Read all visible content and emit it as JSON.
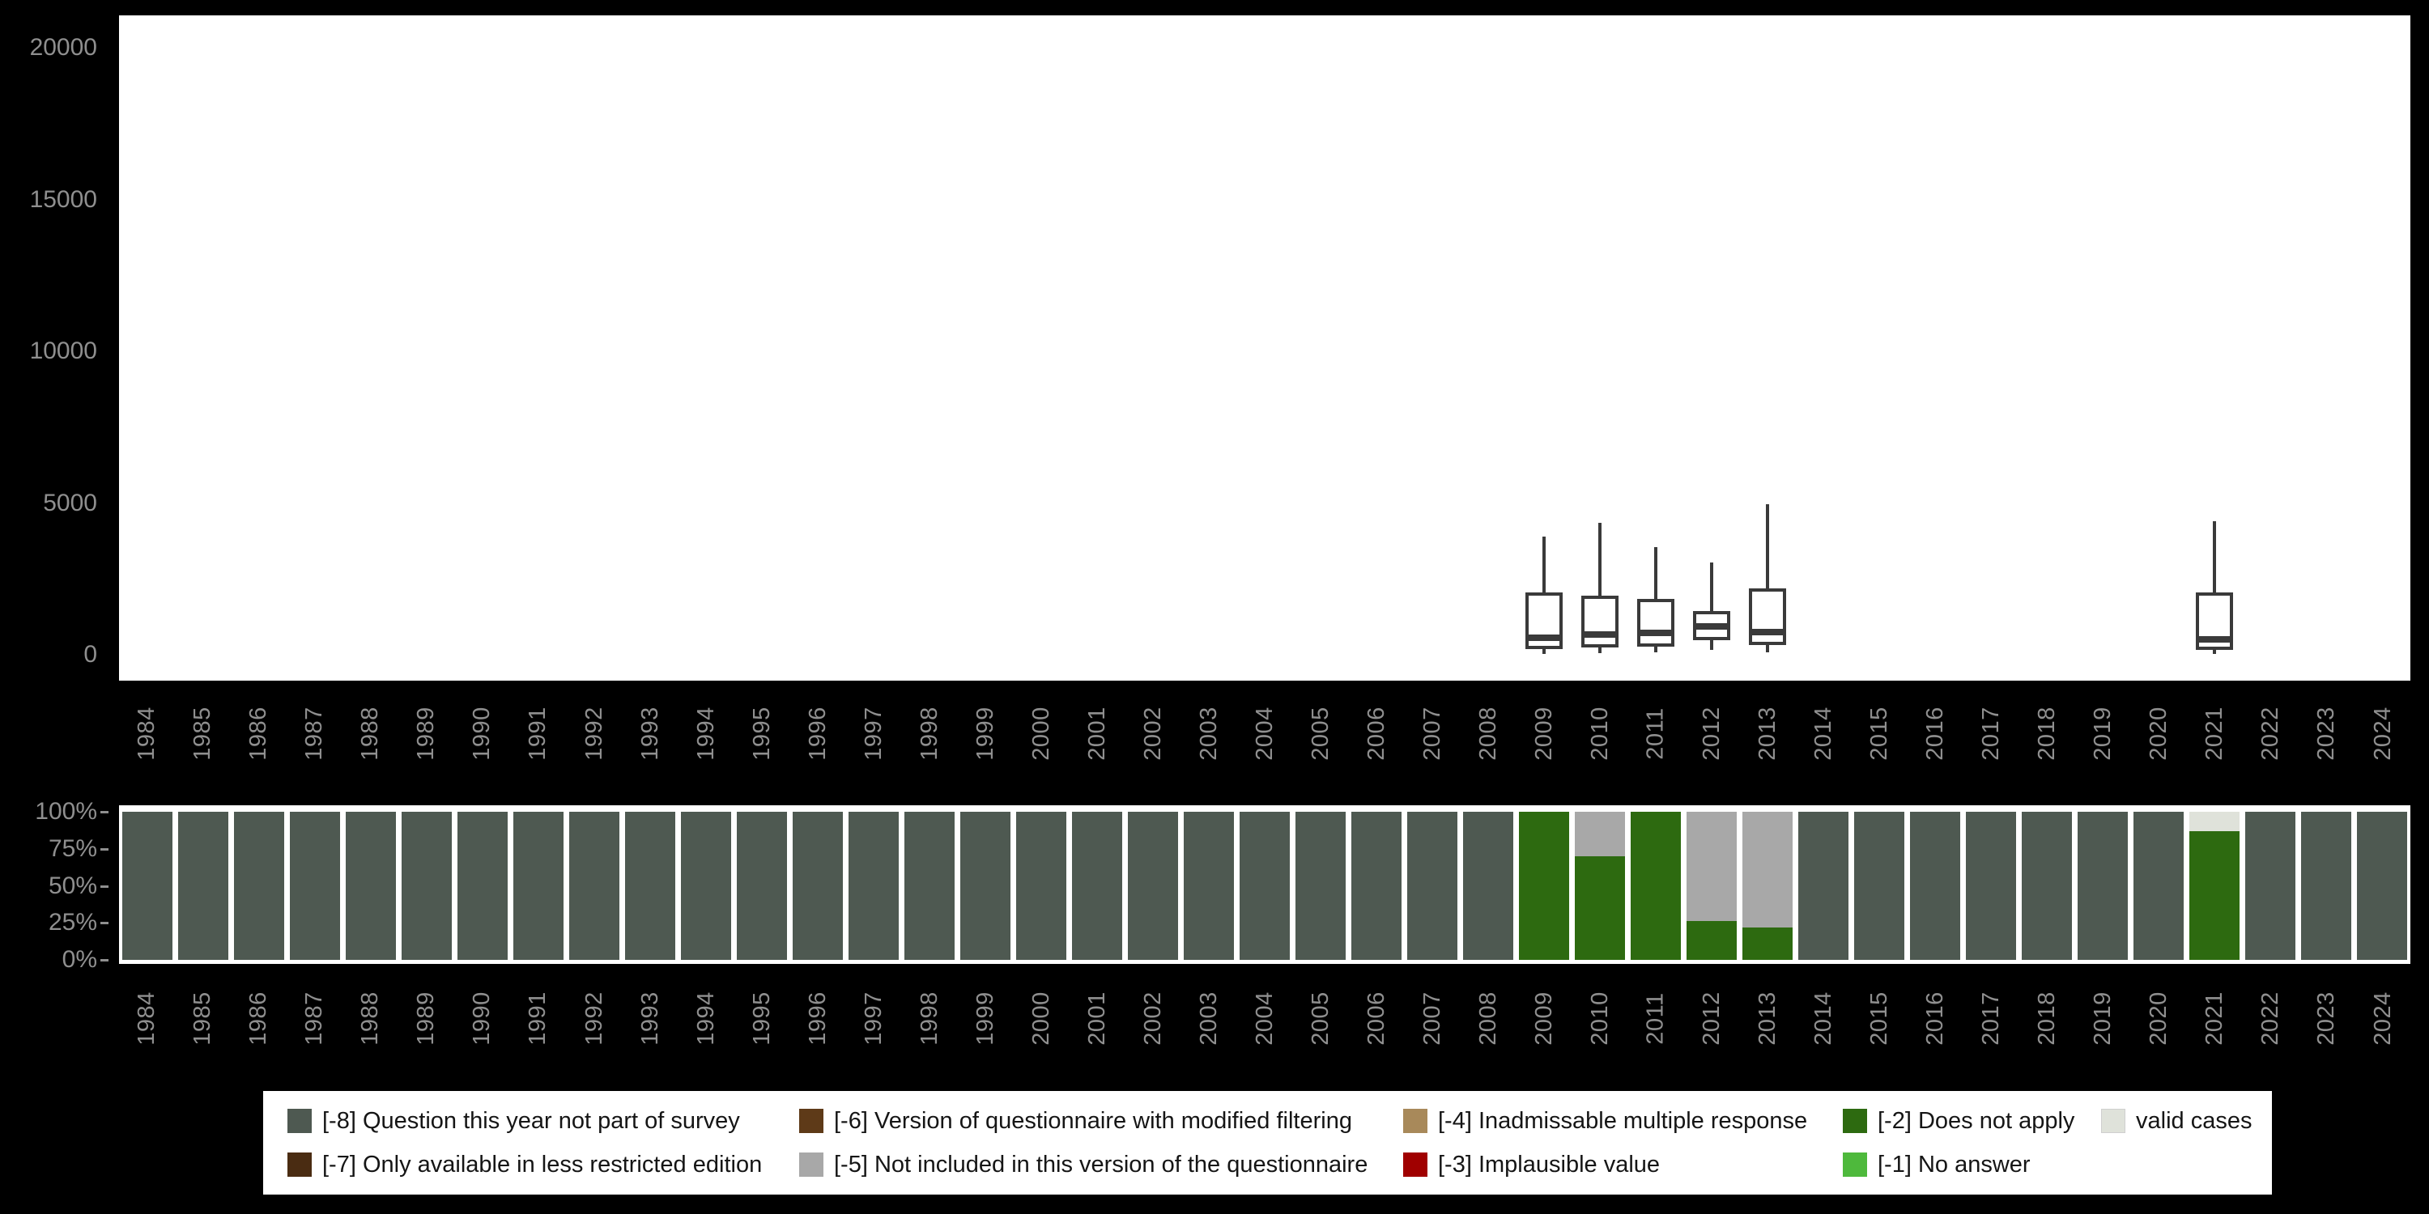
{
  "page": {
    "background": "#000000",
    "panel_background": "#ffffff"
  },
  "colors": {
    "axis_label": "#8f8f8f",
    "box_stroke": "#3a3a3a",
    "legend_text": "#151515",
    "codes": {
      "-8": "#4e5951",
      "-7": "#4a2c12",
      "-6": "#5e3a18",
      "-5": "#a8a8a8",
      "-4": "#a8895a",
      "-3": "#a00000",
      "-2": "#2d6a10",
      "-1": "#4eb93c",
      "valid": "#dfe2da"
    }
  },
  "legend": {
    "columns": [
      [
        {
          "code": "-8",
          "label": "[-8] Question this year not part of survey"
        },
        {
          "code": "-7",
          "label": "[-7] Only available in less restricted edition"
        }
      ],
      [
        {
          "code": "-6",
          "label": "[-6] Version of questionnaire with modified filtering"
        },
        {
          "code": "-5",
          "label": "[-5] Not included in this version of the questionnaire"
        }
      ],
      [
        {
          "code": "-4",
          "label": "[-4] Inadmissable multiple response"
        },
        {
          "code": "-3",
          "label": "[-3] Implausible value"
        }
      ],
      [
        {
          "code": "-2",
          "label": "[-2] Does not apply"
        },
        {
          "code": "-1",
          "label": "[-1] No answer"
        }
      ],
      [
        {
          "code": "valid",
          "label": "valid cases"
        }
      ]
    ]
  },
  "chart_data": [
    {
      "type": "boxplot",
      "title": "",
      "xlabel": "",
      "ylabel": "",
      "ylim": [
        0,
        20000
      ],
      "yticks": [
        {
          "value": 0,
          "label": "0"
        },
        {
          "value": 5000,
          "label": "5000"
        },
        {
          "value": 10000,
          "label": "10000"
        },
        {
          "value": 15000,
          "label": "15000"
        },
        {
          "value": 20000,
          "label": "20000"
        }
      ],
      "x": [
        "1984",
        "1985",
        "1986",
        "1987",
        "1988",
        "1989",
        "1990",
        "1991",
        "1992",
        "1993",
        "1994",
        "1995",
        "1996",
        "1997",
        "1998",
        "1999",
        "2000",
        "2001",
        "2002",
        "2003",
        "2004",
        "2005",
        "2006",
        "2007",
        "2008",
        "2009",
        "2010",
        "2011",
        "2012",
        "2013",
        "2014",
        "2015",
        "2016",
        "2017",
        "2018",
        "2019",
        "2020",
        "2021",
        "2022",
        "2023",
        "2024"
      ],
      "boxes": [
        {
          "year": "2009",
          "whisker_low": 30,
          "q1": 180,
          "median": 570,
          "q3": 2050,
          "whisker_high": 3900
        },
        {
          "year": "2010",
          "whisker_low": 50,
          "q1": 230,
          "median": 660,
          "q3": 1950,
          "whisker_high": 4350
        },
        {
          "year": "2011",
          "whisker_low": 70,
          "q1": 270,
          "median": 720,
          "q3": 1850,
          "whisker_high": 3550
        },
        {
          "year": "2012",
          "whisker_low": 150,
          "q1": 480,
          "median": 930,
          "q3": 1450,
          "whisker_high": 3050
        },
        {
          "year": "2013",
          "whisker_low": 80,
          "q1": 320,
          "median": 760,
          "q3": 2200,
          "whisker_high": 4950
        },
        {
          "year": "2021",
          "whisker_low": 30,
          "q1": 170,
          "median": 520,
          "q3": 2050,
          "whisker_high": 4400
        }
      ]
    },
    {
      "type": "stacked-bar-percent",
      "title": "",
      "xlabel": "",
      "ylabel": "",
      "ylim": [
        0,
        100
      ],
      "yticks": [
        {
          "value": 0,
          "label": "0%"
        },
        {
          "value": 25,
          "label": "25%"
        },
        {
          "value": 50,
          "label": "50%"
        },
        {
          "value": 75,
          "label": "75%"
        },
        {
          "value": 100,
          "label": "100%"
        }
      ],
      "categories": [
        "1984",
        "1985",
        "1986",
        "1987",
        "1988",
        "1989",
        "1990",
        "1991",
        "1992",
        "1993",
        "1994",
        "1995",
        "1996",
        "1997",
        "1998",
        "1999",
        "2000",
        "2001",
        "2002",
        "2003",
        "2004",
        "2005",
        "2006",
        "2007",
        "2008",
        "2009",
        "2010",
        "2011",
        "2012",
        "2013",
        "2014",
        "2015",
        "2016",
        "2017",
        "2018",
        "2019",
        "2020",
        "2021",
        "2022",
        "2023",
        "2024"
      ],
      "default_segments": [
        {
          "code": "-8",
          "pct": 100
        }
      ],
      "bars": {
        "2009": [
          {
            "code": "-2",
            "pct": 100
          }
        ],
        "2010": [
          {
            "code": "-2",
            "pct": 70
          },
          {
            "code": "-5",
            "pct": 30
          }
        ],
        "2011": [
          {
            "code": "-2",
            "pct": 100
          }
        ],
        "2012": [
          {
            "code": "-2",
            "pct": 26
          },
          {
            "code": "-5",
            "pct": 74
          }
        ],
        "2013": [
          {
            "code": "-2",
            "pct": 22
          },
          {
            "code": "-5",
            "pct": 78
          }
        ],
        "2021": [
          {
            "code": "-2",
            "pct": 87
          },
          {
            "code": "valid",
            "pct": 13
          }
        ]
      }
    }
  ]
}
